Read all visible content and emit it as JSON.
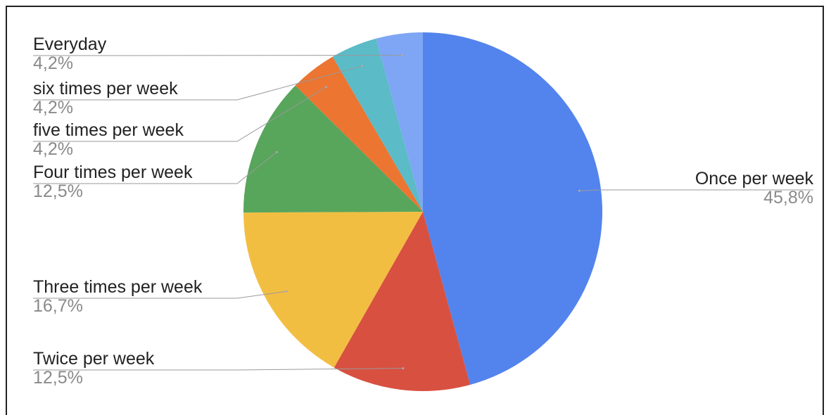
{
  "chart_data": {
    "type": "pie",
    "slices": [
      {
        "label": "Once per week",
        "value_text": "45,8%",
        "value": 45.8,
        "color": "#5384ED"
      },
      {
        "label": "Twice per week",
        "value_text": "12,5%",
        "value": 12.5,
        "color": "#D85040"
      },
      {
        "label": "Three times per week",
        "value_text": "16,7%",
        "value": 16.7,
        "color": "#F2BE42"
      },
      {
        "label": "Four times per week",
        "value_text": "12,5%",
        "value": 12.5,
        "color": "#58A55C"
      },
      {
        "label": "five times per week",
        "value_text": "4,2%",
        "value": 4.2,
        "color": "#EB7531"
      },
      {
        "label": "six times per week",
        "value_text": "4,2%",
        "value": 4.2,
        "color": "#5BBBC7"
      },
      {
        "label": "Everyday",
        "value_text": "4,2%",
        "value": 4.2,
        "color": "#7EA6F4"
      }
    ],
    "start_angle": "12 o'clock",
    "direction": "clockwise",
    "labels": "outside with leader lines"
  }
}
